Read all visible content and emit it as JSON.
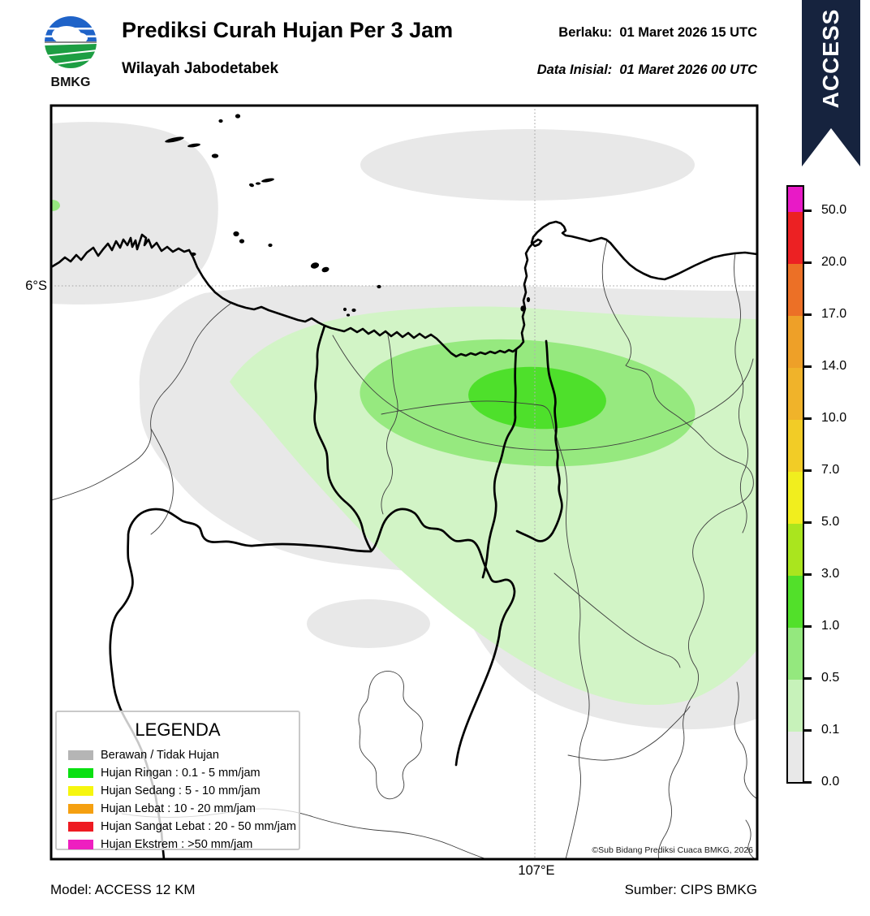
{
  "header": {
    "logo_text": "BMKG",
    "title": "Prediksi Curah Hujan Per 3 Jam",
    "subtitle": "Wilayah Jabodetabek",
    "valid_label": "Berlaku:",
    "valid_value": "01 Maret 2026 15 UTC",
    "init_label": "Data Inisial:",
    "init_value": "01 Maret 2026 00 UTC",
    "ribbon_text": "ACCESS",
    "ribbon_color": "#16233e"
  },
  "map": {
    "lat_label": "6°S",
    "lon_label": "107°E",
    "copyright": "©Sub Bidang Prediksi Cuaca BMKG, 2026",
    "fill_colors": {
      "cloud_gray": "#e8e8e8",
      "rain_light": "#d2f4c6",
      "rain_medium": "#96e97f",
      "rain_core": "#4ee02b"
    }
  },
  "legend": {
    "title": "LEGENDA",
    "items": [
      {
        "label": "Berawan / Tidak Hujan",
        "color": "#b5b5b5"
      },
      {
        "label": "Hujan Ringan : 0.1 - 5 mm/jam",
        "color": "#0ae012"
      },
      {
        "label": "Hujan Sedang : 5 - 10 mm/jam",
        "color": "#f6f60e"
      },
      {
        "label": "Hujan Lebat : 10 - 20 mm/jam",
        "color": "#f5a010"
      },
      {
        "label": "Hujan Sangat Lebat : 20 - 50 mm/jam",
        "color": "#ee1b22"
      },
      {
        "label": "Hujan Ekstrem : >50 mm/jam",
        "color": "#ee1fc0"
      }
    ]
  },
  "colorbar": {
    "unit_implied": "mm/jam",
    "tick_labels": [
      "0.0",
      "0.1",
      "0.5",
      "1.0",
      "3.0",
      "5.0",
      "7.0",
      "10.0",
      "14.0",
      "17.0",
      "20.0",
      "50.0"
    ],
    "segment_colors_bottom_to_top": [
      "#e8e8e8",
      "#c7f2ba",
      "#94e87e",
      "#52e02a",
      "#aae51e",
      "#f1ee1e",
      "#f2cc26",
      "#f0b32a",
      "#eea028",
      "#ec7026",
      "#ec2123",
      "#e81ac6"
    ]
  },
  "footer": {
    "model": "Model: ACCESS 12 KM",
    "source": "Sumber: CIPS BMKG"
  }
}
